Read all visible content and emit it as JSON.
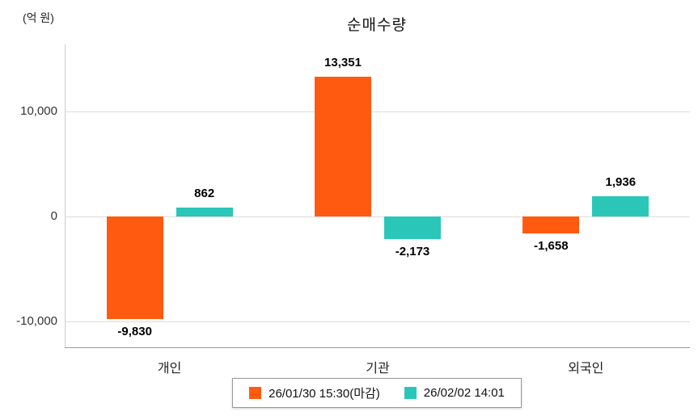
{
  "chart": {
    "title": "순매수량",
    "unit": "(억 원)"
  },
  "chart_data": {
    "type": "bar",
    "title": "순매수량",
    "unit_label": "(억 원)",
    "categories": [
      "개인",
      "기관",
      "외국인"
    ],
    "series": [
      {
        "name": "26/01/30 15:30(마감)",
        "color": "#FF5A0F",
        "values": [
          -9830,
          13351,
          -1658
        ],
        "labels": [
          "-9,830",
          "13,351",
          "-1,658"
        ]
      },
      {
        "name": "26/02/02 14:01",
        "color": "#2AC7B9",
        "values": [
          862,
          -2173,
          1936
        ],
        "labels": [
          "862",
          "-2,173",
          "1,936"
        ]
      }
    ],
    "yticks": [
      {
        "value": 10000,
        "label": "10,000"
      },
      {
        "value": 0,
        "label": "0"
      },
      {
        "value": -10000,
        "label": "-10,000"
      }
    ],
    "ylim": [
      -12500,
      16400
    ],
    "grid": true,
    "legend_position": "bottom"
  }
}
